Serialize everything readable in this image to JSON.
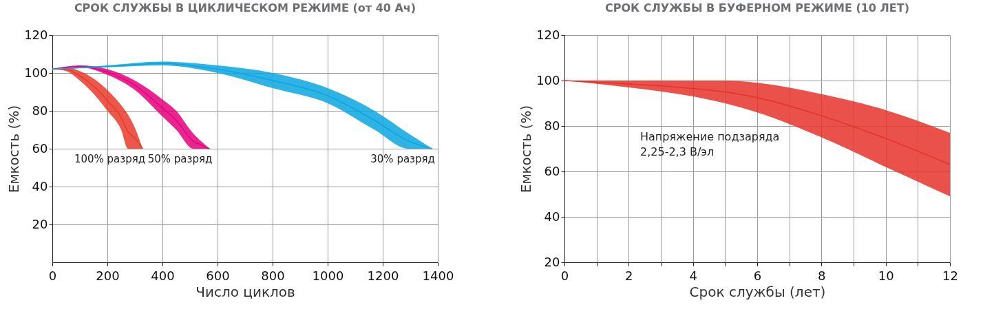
{
  "chart_data": [
    {
      "type": "line",
      "title": "СРОК СЛУЖБЫ В ЦИКЛИЧЕСКОМ РЕЖИМЕ (от 40 Ач)",
      "xlabel": "Число циклов",
      "ylabel": "Емкость (%)",
      "xlim": [
        0,
        1400
      ],
      "ylim": [
        0,
        120
      ],
      "xticks": [
        0,
        200,
        400,
        600,
        800,
        1000,
        1200,
        1400
      ],
      "yticks": [
        20,
        40,
        60,
        80,
        100,
        120
      ],
      "grid": true,
      "marker": "none",
      "series": [
        {
          "name": "100% разряд",
          "color": "#e8392a",
          "x": [
            0,
            50,
            100,
            150,
            200,
            250,
            275,
            300,
            328
          ],
          "lower": [
            102,
            101,
            96,
            89,
            80,
            70,
            60,
            60,
            60
          ],
          "upper": [
            102,
            103,
            101,
            97,
            91,
            83,
            78,
            71,
            60
          ],
          "values": [
            102,
            102,
            98.5,
            93,
            85.5,
            76.5,
            69,
            65.5,
            60
          ]
        },
        {
          "name": "50% разряд",
          "color": "#e5007d",
          "x": [
            0,
            100,
            200,
            300,
            400,
            450,
            512,
            540,
            571
          ],
          "lower": [
            102,
            103,
            99,
            91,
            77,
            70,
            60,
            60,
            60
          ],
          "upper": [
            102,
            104,
            102,
            96,
            86,
            80,
            68,
            64,
            60
          ],
          "values": [
            102,
            103.5,
            100.5,
            93.5,
            81.5,
            75,
            64,
            62,
            60
          ]
        },
        {
          "name": "30% разряд",
          "color": "#0aa6e0",
          "x": [
            0,
            200,
            400,
            600,
            800,
            1000,
            1170,
            1294,
            1380
          ],
          "lower": [
            102,
            103,
            104,
            100,
            92,
            84,
            70,
            60,
            60
          ],
          "upper": [
            102,
            104,
            106,
            104,
            100,
            92,
            80,
            68,
            60
          ],
          "values": [
            102,
            103.5,
            105,
            102,
            96,
            88,
            75,
            64,
            60
          ]
        }
      ]
    },
    {
      "type": "line",
      "title": "СРОК СЛУЖБЫ В БУФЕРНОМ РЕЖИМЕ (10 ЛЕТ)",
      "xlabel": "Срок службы (лет)",
      "ylabel": "Емкость (%)",
      "xlim": [
        0,
        12
      ],
      "ylim": [
        20,
        120
      ],
      "xticks": [
        0,
        {
          "value": 1,
          "label": null
        },
        2,
        {
          "value": 3,
          "label": null
        },
        4,
        {
          "value": 5,
          "label": null
        },
        6,
        {
          "value": 7,
          "label": null
        },
        8,
        {
          "value": 9,
          "label": null
        },
        10,
        {
          "value": 11,
          "label": null
        },
        12
      ],
      "yticks": [
        20,
        40,
        60,
        80,
        100,
        120
      ],
      "grid": true,
      "marker": "none",
      "annotations": [
        "Напряжение подзаряда\n2,25-2,3 В/эл"
      ],
      "series": [
        {
          "color": "#e5322a",
          "x": [
            0,
            2,
            4,
            5,
            6,
            8,
            10,
            12
          ],
          "lower": [
            100,
            97,
            93,
            90,
            86,
            75,
            62,
            49
          ],
          "upper": [
            100,
            100,
            100,
            100,
            99,
            94,
            87,
            77
          ],
          "values": [
            100,
            98.5,
            96.5,
            95,
            92.5,
            84.5,
            74.5,
            63
          ]
        }
      ]
    }
  ]
}
